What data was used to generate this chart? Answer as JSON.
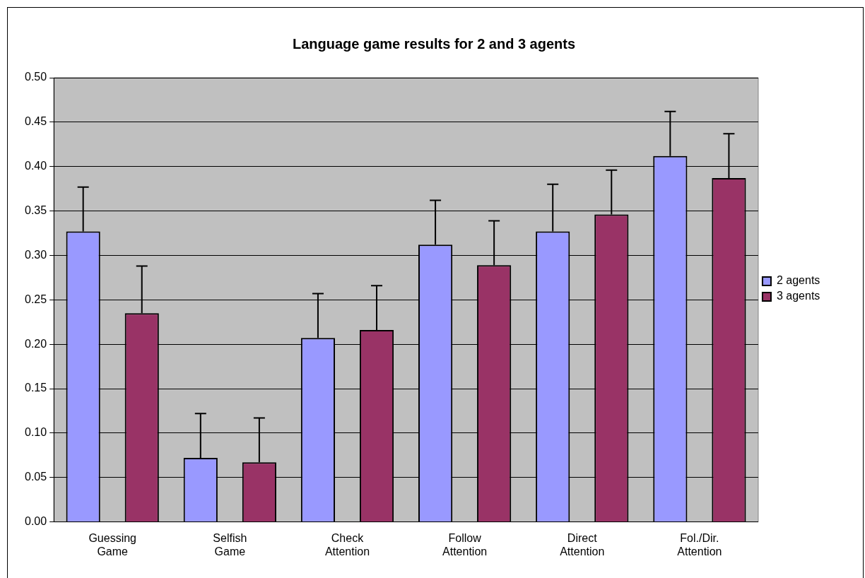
{
  "chart_data": {
    "type": "bar",
    "title": "Language game results for 2 and 3 agents",
    "categories": [
      "Guessing Game",
      "Selfish Game",
      "Check Attention",
      "Follow Attention",
      "Direct Attention",
      "Fol./Dir. Attention"
    ],
    "series": [
      {
        "name": "2 agents",
        "color": "#9999ff",
        "values": [
          0.327,
          0.072,
          0.207,
          0.312,
          0.327,
          0.412
        ],
        "errors": [
          0.05,
          0.05,
          0.05,
          0.05,
          0.053,
          0.05
        ]
      },
      {
        "name": "3 agents",
        "color": "#993366",
        "values": [
          0.235,
          0.067,
          0.216,
          0.289,
          0.346,
          0.387
        ],
        "errors": [
          0.053,
          0.05,
          0.05,
          0.05,
          0.05,
          0.05
        ]
      }
    ],
    "ylim": [
      0,
      0.5
    ],
    "yticks": [
      {
        "value": 0,
        "label": "0.00"
      },
      {
        "value": 0.05,
        "label": "0.05"
      },
      {
        "value": 0.1,
        "label": "0.10"
      },
      {
        "value": 0.15,
        "label": "0.15"
      },
      {
        "value": 0.2,
        "label": "0.20"
      },
      {
        "value": 0.25,
        "label": "0.25"
      },
      {
        "value": 0.3,
        "label": "0.30"
      },
      {
        "value": 0.35,
        "label": "0.35"
      },
      {
        "value": 0.4,
        "label": "0.40"
      },
      {
        "value": 0.45,
        "label": "0.45"
      },
      {
        "value": 0.5,
        "label": "0.50"
      }
    ],
    "grid": "y",
    "legend": "right"
  }
}
